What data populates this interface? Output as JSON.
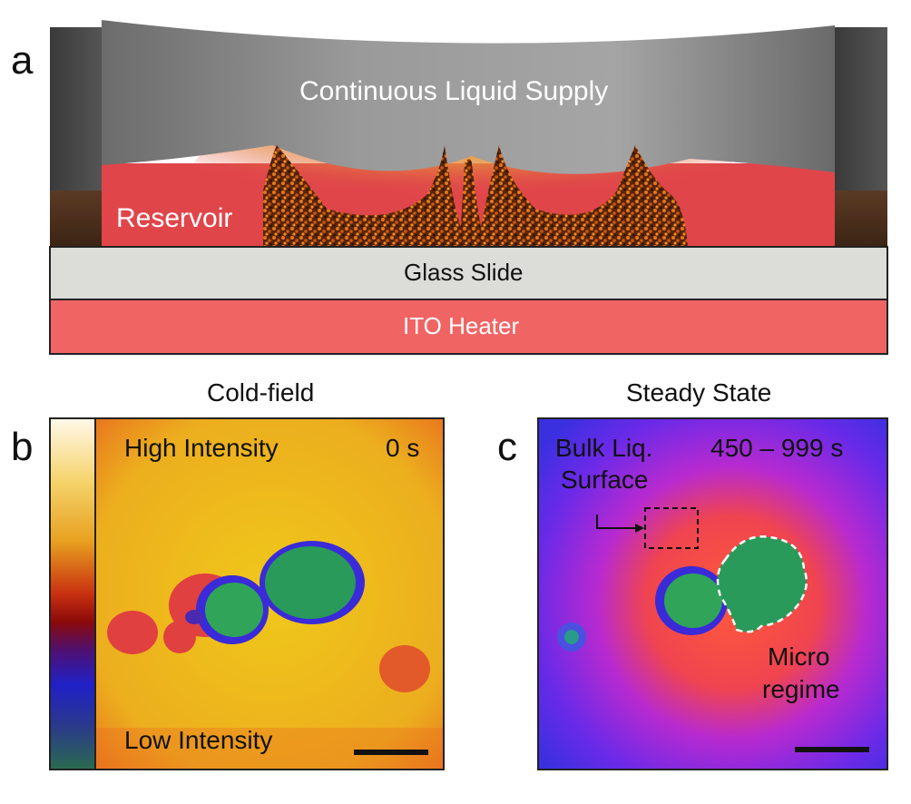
{
  "panel_a": {
    "letter": "a",
    "supply_label": "Continuous Liquid Supply",
    "reservoir_label": "Reservoir",
    "glass_label": "Glass Slide",
    "heater_label": "ITO Heater"
  },
  "panel_b": {
    "letter": "b",
    "title": "Cold-field",
    "time": "0 s",
    "colorbar_top": "High Intensity",
    "colorbar_bottom": "Low Intensity"
  },
  "panel_c": {
    "letter": "c",
    "title": "Steady State",
    "time": "450 – 999 s",
    "bulk_label_line1": "Bulk Liq.",
    "bulk_label_line2": "Surface",
    "micro_label_line1": "Micro",
    "micro_label_line2": "regime"
  },
  "colors": {
    "glass": "#dcdcd8",
    "heater": "#f06464",
    "reservoir": "#e0454a",
    "supply": "#7d7d7d",
    "droplet": "#27a45a"
  }
}
